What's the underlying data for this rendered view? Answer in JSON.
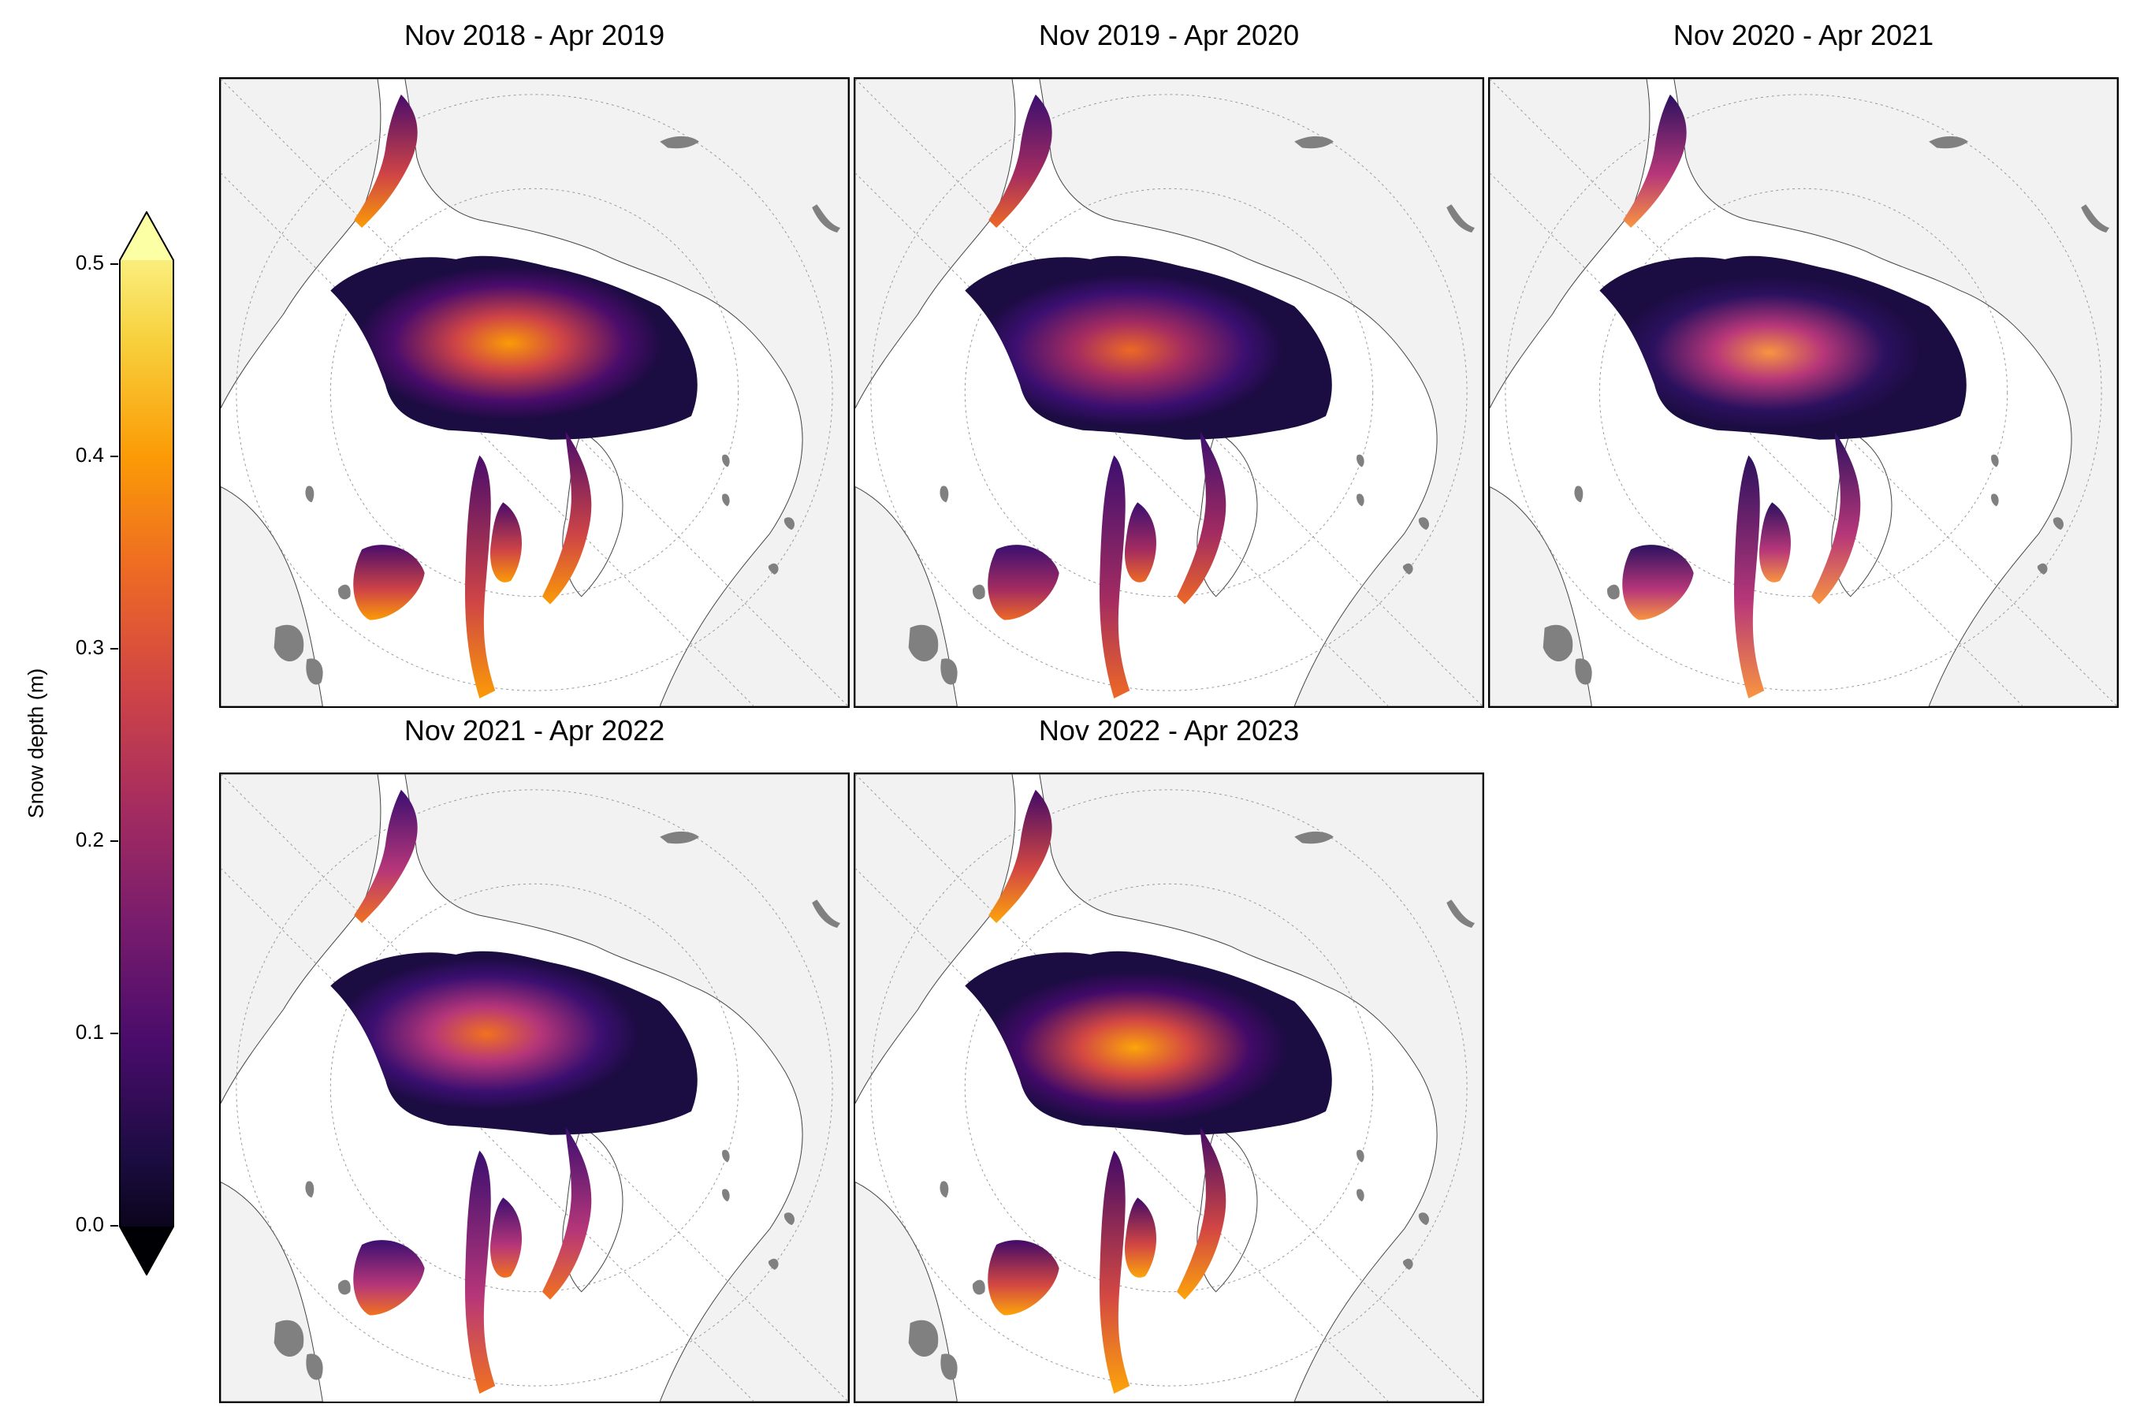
{
  "colorbar": {
    "label": "Snow depth (m)",
    "ticks": [
      "0.5",
      "0.4",
      "0.3",
      "0.2",
      "0.1",
      "0.0"
    ],
    "colormap": "inferno",
    "range": [
      0.0,
      0.5
    ],
    "extend": "both",
    "colors": [
      "#000004",
      "#1b0c41",
      "#4a0c6b",
      "#781c6d",
      "#a52c60",
      "#cf4446",
      "#ed6925",
      "#fb9b06",
      "#f7d13d",
      "#fcffa4"
    ]
  },
  "panels": [
    {
      "title": "Nov 2018 - Apr 2019"
    },
    {
      "title": "Nov 2019 - Apr 2020"
    },
    {
      "title": "Nov 2020 - Apr 2021"
    },
    {
      "title": "Nov 2021 - Apr 2022"
    },
    {
      "title": "Nov 2022 - Apr 2023"
    }
  ],
  "map_style": {
    "projection": "north-polar-stereographic",
    "land_color": "#f2f2f2",
    "lake_color": "#808080",
    "gridlines": "dotted"
  }
}
